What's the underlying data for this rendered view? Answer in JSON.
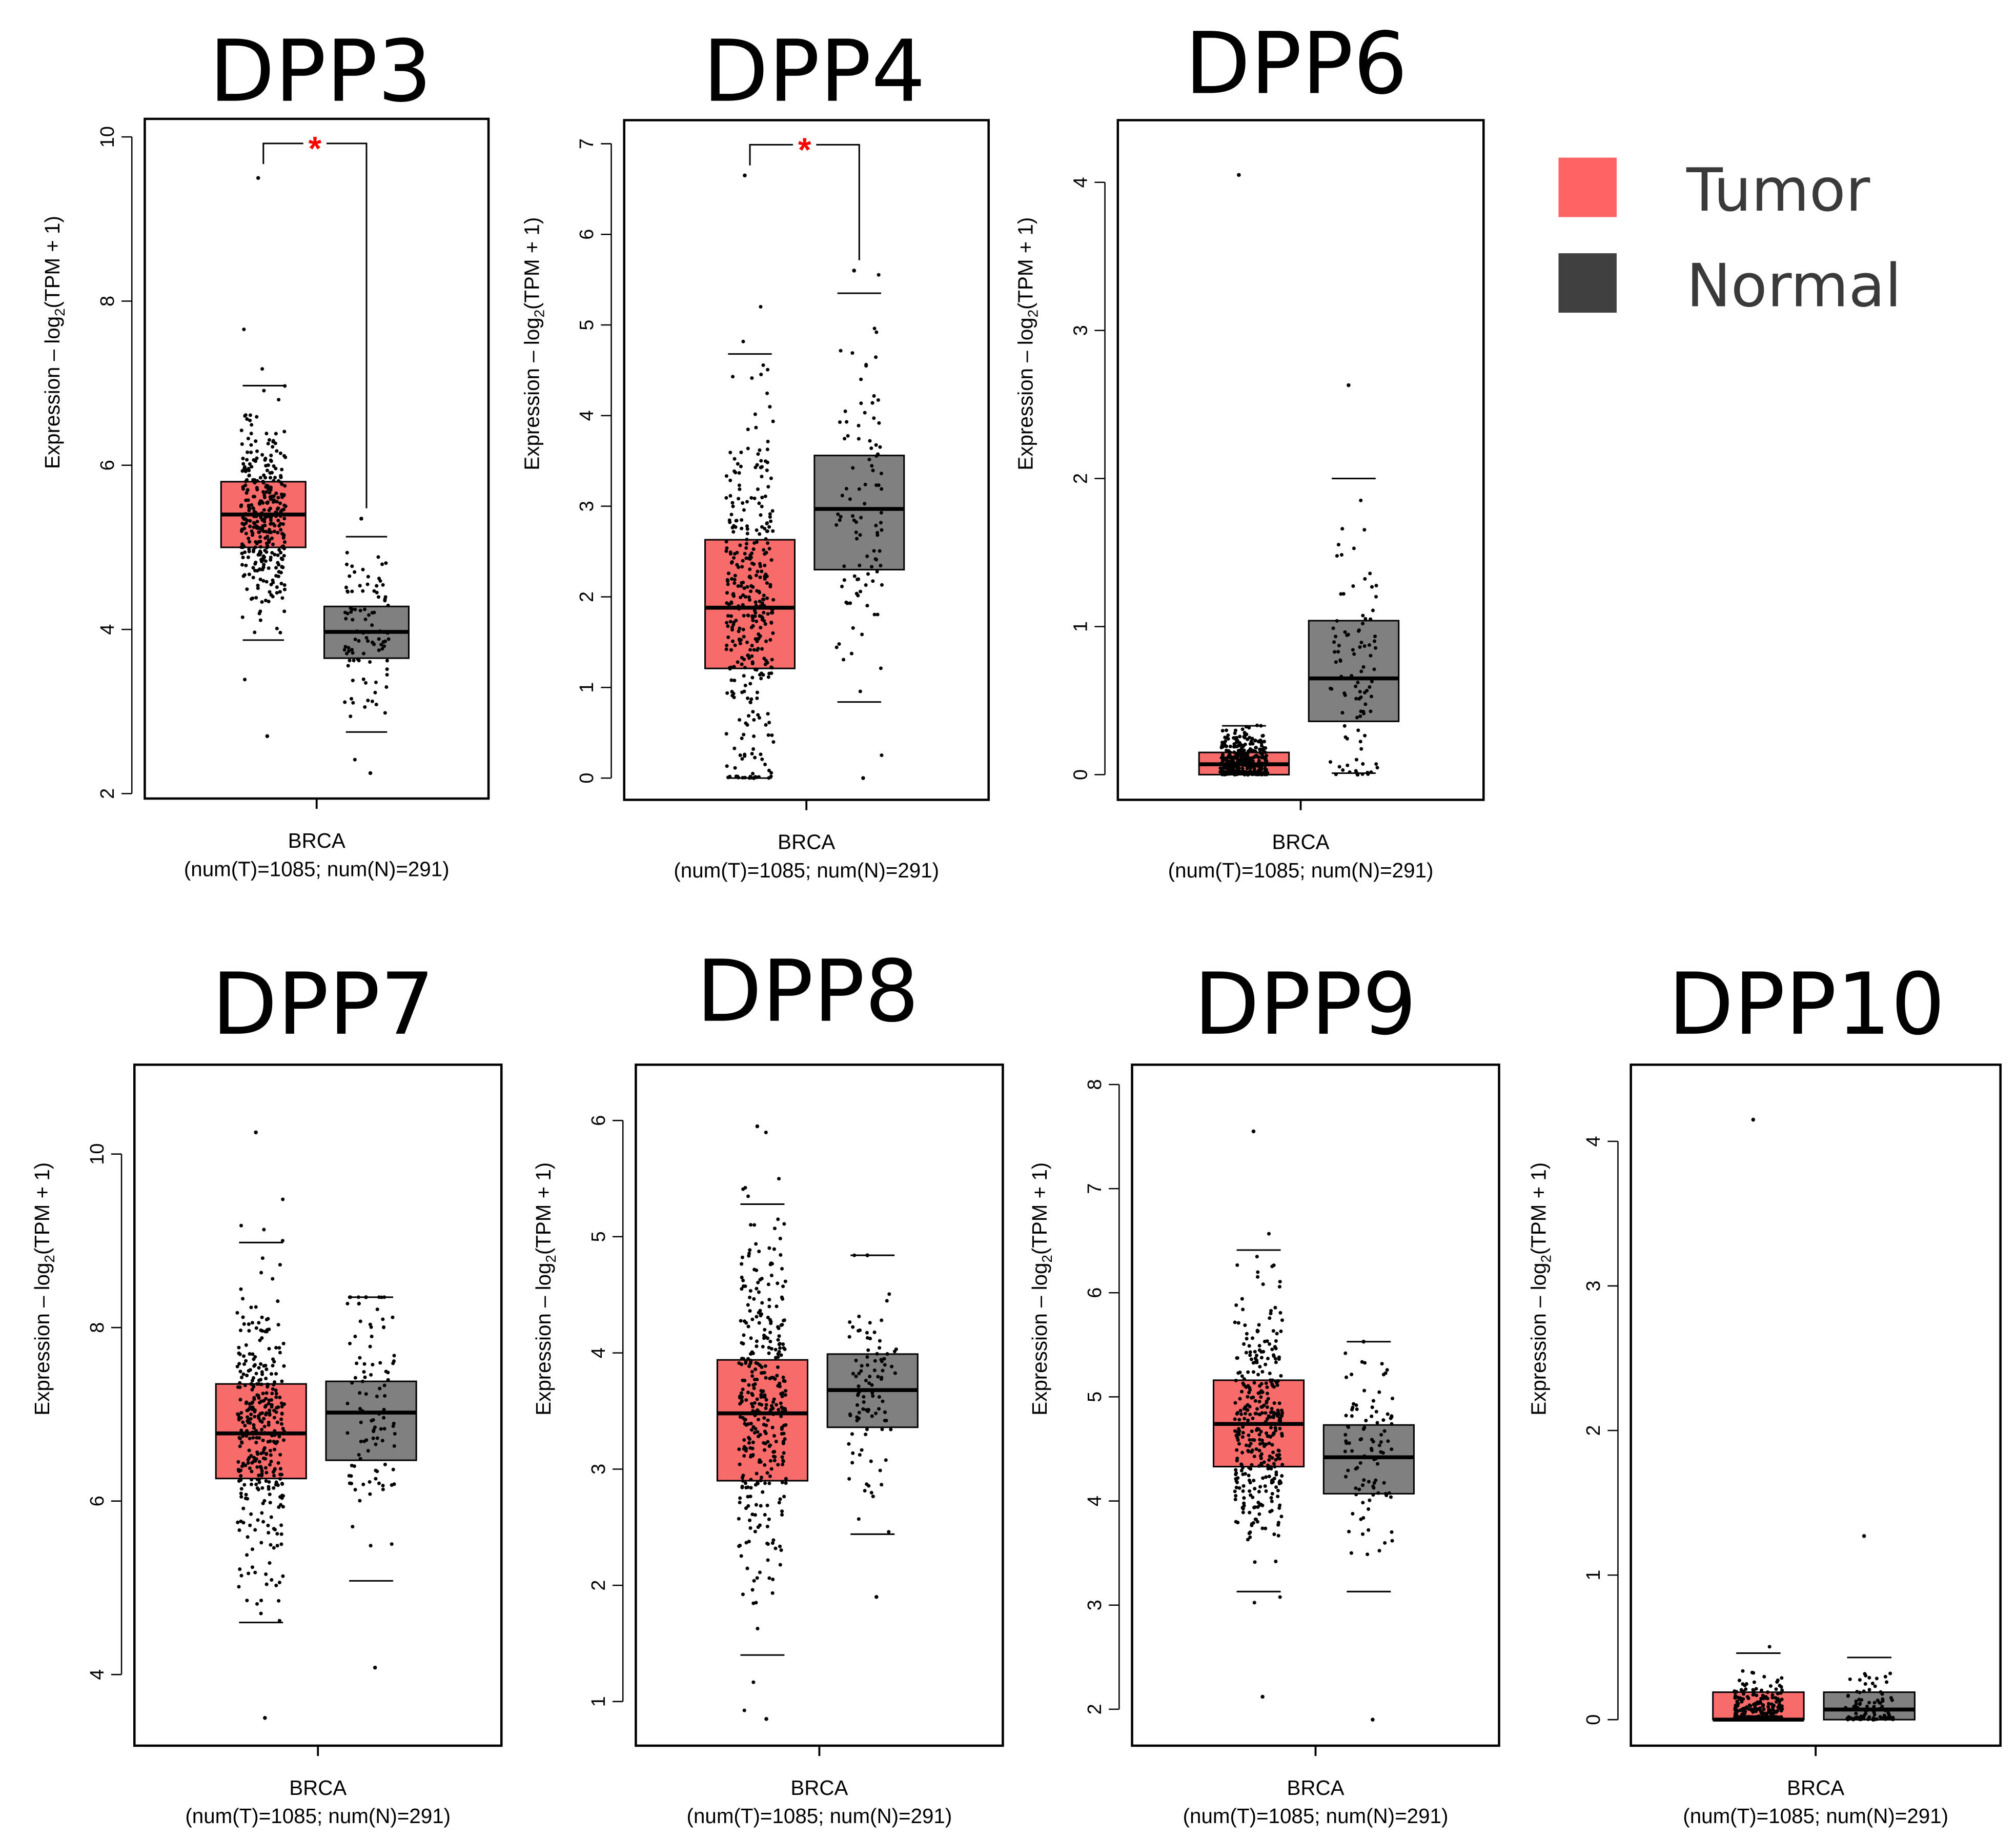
{
  "colors": {
    "tumor": "#F86B6B",
    "normal": "#808080",
    "legend_tumor": "#FF6363",
    "legend_normal": "#404040",
    "significance": "#FF0000"
  },
  "legend": {
    "items": [
      {
        "label": "Tumor",
        "color": "#FF6363"
      },
      {
        "label": "Normal",
        "color": "#404040"
      }
    ],
    "placement": "top-right"
  },
  "chart_data": [
    {
      "type": "box",
      "title": "DPP3",
      "ylabel_main": "Expression – log",
      "ylabel_sub": "2",
      "ylabel_tail": "(TPM + 1)",
      "xlabel": "BRCA",
      "xsublabel": "(num(T)=1085; num(N)=291)",
      "ylim": [
        1.94,
        10.22
      ],
      "yticks": [
        2,
        4,
        6,
        8,
        10
      ],
      "significance": "*",
      "groups": [
        {
          "name": "Tumor",
          "n": 1085,
          "q1": 5.0,
          "median": 5.4,
          "q3": 5.8,
          "whisker_low": 3.87,
          "whisker_high": 6.97,
          "max": 9.5,
          "min": 2.7
        },
        {
          "name": "Normal",
          "n": 291,
          "q1": 3.65,
          "median": 3.97,
          "q3": 4.28,
          "whisker_low": 2.75,
          "whisker_high": 5.13,
          "max": 5.35,
          "min": 2.25
        }
      ]
    },
    {
      "type": "box",
      "title": "DPP4",
      "ylabel_main": "Expression – log",
      "ylabel_sub": "2",
      "ylabel_tail": "(TPM + 1)",
      "xlabel": "BRCA",
      "xsublabel": "(num(T)=1085; num(N)=291)",
      "ylim": [
        -0.24,
        7.26
      ],
      "yticks": [
        0,
        1,
        2,
        3,
        4,
        5,
        6,
        7
      ],
      "significance": "*",
      "groups": [
        {
          "name": "Tumor",
          "n": 1085,
          "q1": 1.21,
          "median": 1.88,
          "q3": 2.63,
          "whisker_low": 0,
          "whisker_high": 4.68,
          "max": 6.65,
          "min": 0
        },
        {
          "name": "Normal",
          "n": 291,
          "q1": 2.3,
          "median": 2.97,
          "q3": 3.56,
          "whisker_low": 0.84,
          "whisker_high": 5.35,
          "max": 5.6,
          "min": 0
        }
      ]
    },
    {
      "type": "box",
      "title": "DPP6",
      "ylabel_main": "Expression – log",
      "ylabel_sub": "2",
      "ylabel_tail": "(TPM + 1)",
      "xlabel": "BRCA",
      "xsublabel": "(num(T)=1085; num(N)=291)",
      "ylim": [
        -0.17,
        4.42
      ],
      "yticks": [
        0,
        1,
        2,
        3,
        4
      ],
      "significance": "",
      "groups": [
        {
          "name": "Tumor",
          "n": 1085,
          "q1": 0.0,
          "median": 0.07,
          "q3": 0.15,
          "whisker_low": 0,
          "whisker_high": 0.33,
          "max": 4.05,
          "min": 0
        },
        {
          "name": "Normal",
          "n": 291,
          "q1": 0.36,
          "median": 0.65,
          "q3": 1.04,
          "whisker_low": 0.01,
          "whisker_high": 2.0,
          "max": 2.63,
          "min": 0
        }
      ]
    },
    {
      "type": "box",
      "title": "DPP7",
      "ylabel_main": "Expression – log",
      "ylabel_sub": "2",
      "ylabel_tail": "(TPM + 1)",
      "xlabel": "BRCA",
      "xsublabel": "(num(T)=1085; num(N)=291)",
      "ylim": [
        3.18,
        11.03
      ],
      "yticks": [
        4,
        6,
        8,
        10
      ],
      "significance": "",
      "groups": [
        {
          "name": "Tumor",
          "n": 1085,
          "q1": 6.26,
          "median": 6.78,
          "q3": 7.35,
          "whisker_low": 4.6,
          "whisker_high": 8.98,
          "max": 10.25,
          "min": 3.5
        },
        {
          "name": "Normal",
          "n": 291,
          "q1": 6.47,
          "median": 7.02,
          "q3": 7.38,
          "whisker_low": 5.08,
          "whisker_high": 8.35,
          "max": 8.35,
          "min": 4.08
        }
      ]
    },
    {
      "type": "box",
      "title": "DPP8",
      "ylabel_main": "Expression – log",
      "ylabel_sub": "2",
      "ylabel_tail": "(TPM + 1)",
      "xlabel": "BRCA",
      "xsublabel": "(num(T)=1085; num(N)=291)",
      "ylim": [
        0.62,
        6.48
      ],
      "yticks": [
        1,
        2,
        3,
        4,
        5,
        6
      ],
      "significance": "",
      "groups": [
        {
          "name": "Tumor",
          "n": 1085,
          "q1": 2.9,
          "median": 3.48,
          "q3": 3.94,
          "whisker_low": 1.4,
          "whisker_high": 5.28,
          "max": 5.95,
          "min": 0.85
        },
        {
          "name": "Normal",
          "n": 291,
          "q1": 3.36,
          "median": 3.68,
          "q3": 3.99,
          "whisker_low": 2.44,
          "whisker_high": 4.84,
          "max": 4.84,
          "min": 1.9
        }
      ]
    },
    {
      "type": "box",
      "title": "DPP9",
      "ylabel_main": "Expression – log",
      "ylabel_sub": "2",
      "ylabel_tail": "(TPM + 1)",
      "xlabel": "BRCA",
      "xsublabel": "(num(T)=1085; num(N)=291)",
      "ylim": [
        1.65,
        8.19
      ],
      "yticks": [
        2,
        3,
        4,
        5,
        6,
        7,
        8
      ],
      "significance": "",
      "groups": [
        {
          "name": "Tumor",
          "n": 1085,
          "q1": 4.33,
          "median": 4.74,
          "q3": 5.16,
          "whisker_low": 3.13,
          "whisker_high": 6.41,
          "max": 7.55,
          "min": 2.12
        },
        {
          "name": "Normal",
          "n": 291,
          "q1": 4.07,
          "median": 4.42,
          "q3": 4.73,
          "whisker_low": 3.13,
          "whisker_high": 5.53,
          "max": 5.53,
          "min": 1.9
        }
      ]
    },
    {
      "type": "box",
      "title": "DPP10",
      "ylabel_main": "Expression – log",
      "ylabel_sub": "2",
      "ylabel_tail": "(TPM + 1)",
      "xlabel": "BRCA",
      "xsublabel": "(num(T)=1085; num(N)=291)",
      "ylim": [
        -0.18,
        4.53
      ],
      "yticks": [
        0,
        1,
        2,
        3,
        4
      ],
      "significance": "",
      "groups": [
        {
          "name": "Tumor",
          "n": 1085,
          "q1": 0.0,
          "median": 0.0,
          "q3": 0.19,
          "whisker_low": 0,
          "whisker_high": 0.46,
          "max": 4.15,
          "min": 0
        },
        {
          "name": "Normal",
          "n": 291,
          "q1": 0.0,
          "median": 0.07,
          "q3": 0.19,
          "whisker_low": 0,
          "whisker_high": 0.43,
          "max": 1.27,
          "min": 0
        }
      ]
    }
  ]
}
